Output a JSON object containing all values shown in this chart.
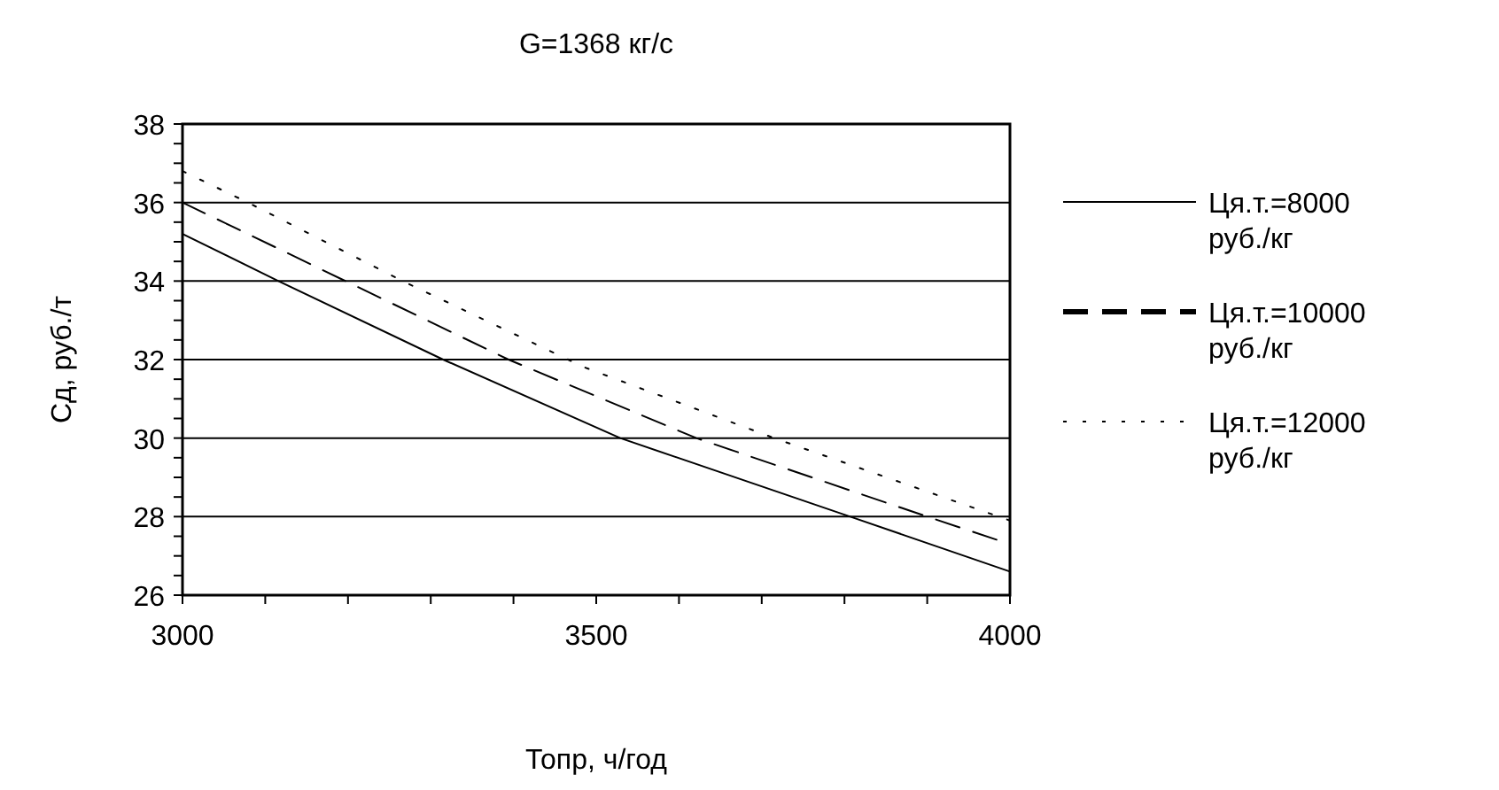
{
  "chart_data": {
    "type": "line",
    "title": "G=1368 кг/с",
    "xlabel": "Топр, ч/год",
    "ylabel": "Сд, руб./т",
    "xlim": [
      3000,
      4000
    ],
    "xticks": [
      3000,
      3500,
      4000
    ],
    "ylim": [
      26,
      38
    ],
    "yticks": [
      26,
      28,
      30,
      32,
      34,
      36,
      38
    ],
    "grid": "y",
    "legend": "right",
    "marker": "none",
    "series": [
      {
        "name": "Ця.т.=8000 руб./кг",
        "color": "#000000",
        "line_style": "solid",
        "x": [
          3000,
          3116,
          3315,
          3529,
          3807,
          4000
        ],
        "values": [
          35.2,
          34,
          32,
          30,
          28,
          26.6
        ]
      },
      {
        "name": "Ця.т.=10000 руб./кг",
        "color": "#000000",
        "line_style": "dashed",
        "x": [
          3000,
          3197,
          3394,
          3621,
          3900,
          4000
        ],
        "values": [
          36,
          34,
          32,
          30,
          28,
          27.3
        ]
      },
      {
        "name": "Ця.т.=12000 руб./кг",
        "color": "#000000",
        "line_style": "dotted",
        "x": [
          3000,
          3079,
          3266,
          3486,
          3715,
          4000
        ],
        "values": [
          36.8,
          36,
          34,
          31.8,
          30,
          27.9
        ]
      }
    ]
  }
}
